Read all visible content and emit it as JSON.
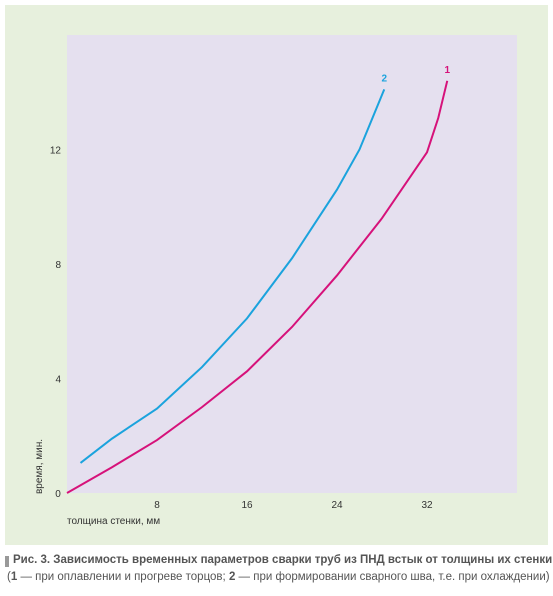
{
  "chart_data": {
    "type": "line",
    "x_label": "толщина стенки, мм",
    "y_label": "время, мин.",
    "xlim": [
      0,
      40
    ],
    "xticks": [
      0,
      8,
      16,
      24,
      32
    ],
    "ylim": [
      0,
      16
    ],
    "yticks": [
      4,
      8,
      12
    ],
    "series": [
      {
        "name": "1",
        "color": "#d6127a",
        "x": [
          0,
          4,
          8,
          12,
          16,
          20,
          24,
          28,
          32,
          33,
          33.8
        ],
        "values": [
          0,
          0.9,
          1.85,
          3.0,
          4.25,
          5.8,
          7.6,
          9.6,
          11.9,
          13.1,
          14.4
        ]
      },
      {
        "name": "2",
        "color": "#1ba3dd",
        "x": [
          1.2,
          4,
          8,
          12,
          16,
          20,
          24,
          26,
          28.2
        ],
        "values": [
          1.05,
          1.9,
          2.95,
          4.4,
          6.1,
          8.2,
          10.6,
          12.0,
          14.1
        ]
      }
    ]
  },
  "caption": {
    "title": "Рис. 3. Зависимость временных параметров сварки труб из ПНД встык от толщины их стенки",
    "note": [
      "(",
      "1",
      " — при оплавлении и прогреве торцов; ",
      "2",
      " — при формировании сварного шва, т.е. при охлаждении)"
    ]
  }
}
